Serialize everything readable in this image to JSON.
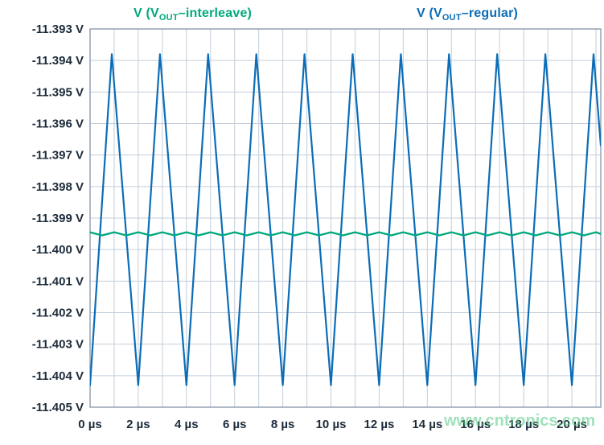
{
  "legend": {
    "interleave": {
      "prefix": "V (V",
      "sub": "OUT",
      "suffix": "–interleave)"
    },
    "regular": {
      "prefix": "V (V",
      "sub": "OUT",
      "suffix": "–regular)"
    }
  },
  "watermark": "www.cntronics.com",
  "colors": {
    "blue": "#0b6db7",
    "green": "#00a97c",
    "grid": "#c4cdd9",
    "border": "#8494a8",
    "axis_text": "#1c2b3a"
  },
  "chart_data": {
    "type": "line",
    "title": "",
    "xlabel": "",
    "ylabel": "",
    "xlim": [
      0,
      21.2
    ],
    "ylim": [
      -11.405,
      -11.393
    ],
    "grid": {
      "x_every": 1,
      "y_every": 0.001
    },
    "legend_position": "top",
    "x_ticks": {
      "values": [
        0,
        2,
        4,
        6,
        8,
        10,
        12,
        14,
        16,
        18,
        20
      ],
      "labels": [
        "0 µs",
        "2 µs",
        "4 µs",
        "6 µs",
        "8 µs",
        "10 µs",
        "12 µs",
        "14 µs",
        "16 µs",
        "18 µs",
        "20 µs"
      ]
    },
    "y_ticks": {
      "values": [
        -11.393,
        -11.394,
        -11.395,
        -11.396,
        -11.397,
        -11.398,
        -11.399,
        -11.4,
        -11.401,
        -11.402,
        -11.403,
        -11.404,
        -11.405
      ],
      "labels": [
        "-11.393 V",
        "-11.394 V",
        "-11.395 V",
        "-11.396 V",
        "-11.397 V",
        "-11.398 V",
        "-11.399 V",
        "-11.400 V",
        "-11.401 V",
        "-11.402 V",
        "-11.403 V",
        "-11.404 V",
        "-11.405 V"
      ]
    },
    "series": [
      {
        "name": "V (V_OUT–interleave)",
        "color": "#00a97c",
        "stroke_width": 2.4,
        "points": [
          [
            0,
            -11.39945
          ],
          [
            0.5,
            -11.39955
          ],
          [
            1,
            -11.39945
          ],
          [
            1.5,
            -11.39955
          ],
          [
            2,
            -11.39945
          ],
          [
            2.5,
            -11.39955
          ],
          [
            3,
            -11.39945
          ],
          [
            3.5,
            -11.39955
          ],
          [
            4,
            -11.39945
          ],
          [
            4.5,
            -11.39955
          ],
          [
            5,
            -11.39945
          ],
          [
            5.5,
            -11.39955
          ],
          [
            6,
            -11.39945
          ],
          [
            6.5,
            -11.39955
          ],
          [
            7,
            -11.39945
          ],
          [
            7.5,
            -11.39955
          ],
          [
            8,
            -11.39945
          ],
          [
            8.5,
            -11.39955
          ],
          [
            9,
            -11.39945
          ],
          [
            9.5,
            -11.39955
          ],
          [
            10,
            -11.39945
          ],
          [
            10.5,
            -11.39955
          ],
          [
            11,
            -11.39945
          ],
          [
            11.5,
            -11.39955
          ],
          [
            12,
            -11.39945
          ],
          [
            12.5,
            -11.39955
          ],
          [
            13,
            -11.39945
          ],
          [
            13.5,
            -11.39955
          ],
          [
            14,
            -11.39945
          ],
          [
            14.5,
            -11.39955
          ],
          [
            15,
            -11.39945
          ],
          [
            15.5,
            -11.39955
          ],
          [
            16,
            -11.39945
          ],
          [
            16.5,
            -11.39955
          ],
          [
            17,
            -11.39945
          ],
          [
            17.5,
            -11.39955
          ],
          [
            18,
            -11.39945
          ],
          [
            18.5,
            -11.39955
          ],
          [
            19,
            -11.39945
          ],
          [
            19.5,
            -11.39955
          ],
          [
            20,
            -11.39945
          ],
          [
            20.5,
            -11.39955
          ],
          [
            21,
            -11.39945
          ],
          [
            21.2,
            -11.3995
          ]
        ]
      },
      {
        "name": "V (V_OUT–regular)",
        "color": "#0b6db7",
        "stroke_width": 2.2,
        "points": [
          [
            0,
            -11.4043
          ],
          [
            0.9,
            -11.3938
          ],
          [
            2,
            -11.4043
          ],
          [
            2.9,
            -11.3938
          ],
          [
            4,
            -11.4043
          ],
          [
            4.9,
            -11.3938
          ],
          [
            6,
            -11.4043
          ],
          [
            6.9,
            -11.3938
          ],
          [
            8,
            -11.4043
          ],
          [
            8.9,
            -11.3938
          ],
          [
            10,
            -11.4043
          ],
          [
            10.9,
            -11.3938
          ],
          [
            12,
            -11.4043
          ],
          [
            12.9,
            -11.3938
          ],
          [
            14,
            -11.4043
          ],
          [
            14.9,
            -11.3938
          ],
          [
            16,
            -11.4043
          ],
          [
            16.9,
            -11.3938
          ],
          [
            18,
            -11.4043
          ],
          [
            18.9,
            -11.3938
          ],
          [
            20,
            -11.4043
          ],
          [
            20.9,
            -11.3938
          ],
          [
            21.2,
            -11.3967
          ]
        ]
      }
    ]
  }
}
